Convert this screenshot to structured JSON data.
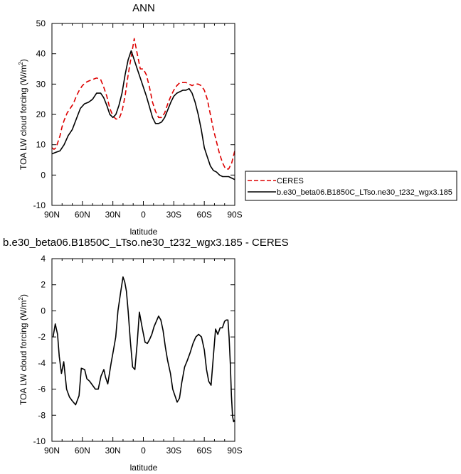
{
  "chart_data": [
    {
      "type": "line",
      "title": "ANN",
      "xlabel": "latitude",
      "ylabel": "TOA LW cloud forcing (W/m",
      "ylabel_sup": "2",
      "ylabel_close": ")",
      "xlim": [
        90,
        -90
      ],
      "ylim": [
        -10,
        50
      ],
      "xticks": [
        90,
        60,
        30,
        0,
        -30,
        -60,
        -90
      ],
      "xtick_labels": [
        "90N",
        "60N",
        "30N",
        "0",
        "30S",
        "60S",
        "90S"
      ],
      "yticks": [
        -10,
        0,
        10,
        20,
        30,
        40,
        50
      ],
      "ytick_labels": [
        "-10",
        "0",
        "10",
        "20",
        "30",
        "40",
        "50"
      ],
      "legend": [
        "CERES",
        "b.e30_beta06.B1850C_LTso.ne30_t232_wgx3.185"
      ],
      "legend_placement": "right-middle",
      "grid": false,
      "series": [
        {
          "name": "CERES",
          "color": "#dd0000",
          "style": "dashed",
          "x": [
            90,
            88,
            86,
            84,
            82,
            80,
            78,
            75,
            72,
            69,
            66,
            63,
            60,
            57,
            54,
            50,
            46,
            42,
            39,
            36,
            33,
            30,
            27,
            24,
            21,
            18,
            15,
            12,
            9,
            6,
            3,
            0,
            -3,
            -6,
            -9,
            -12,
            -15,
            -18,
            -21,
            -24,
            -27,
            -30,
            -33,
            -36,
            -39,
            -42,
            -45,
            -48,
            -51,
            -54,
            -57,
            -60,
            -63,
            -66,
            -69,
            -72,
            -75,
            -78,
            -81,
            -84,
            -87,
            -90
          ],
          "y": [
            9,
            8.5,
            9,
            11,
            13,
            16,
            18,
            20.5,
            22,
            23.5,
            26,
            28,
            29.5,
            30.5,
            31,
            31.5,
            32,
            31.5,
            29,
            26,
            22,
            19.5,
            18.5,
            18.5,
            21,
            26,
            33,
            39,
            45,
            40,
            35,
            35,
            33,
            29,
            24,
            21,
            19,
            19,
            20.5,
            23.5,
            26,
            28,
            29.5,
            30.5,
            30.5,
            30.5,
            30,
            29.5,
            30,
            30,
            29.5,
            28,
            25,
            20,
            15,
            11,
            7,
            4,
            2,
            2,
            4,
            8
          ]
        },
        {
          "name": "b.e30_beta06.B1850C_LTso.ne30_t232_wgx3.185",
          "color": "#000000",
          "style": "solid",
          "x": [
            90,
            86,
            82,
            78,
            74,
            70,
            66,
            62,
            58,
            54,
            50,
            46,
            42,
            39,
            36,
            33,
            30,
            27,
            24,
            21,
            18,
            15,
            12,
            9,
            6,
            3,
            0,
            -3,
            -6,
            -9,
            -12,
            -15,
            -18,
            -21,
            -24,
            -27,
            -30,
            -33,
            -36,
            -39,
            -42,
            -45,
            -48,
            -51,
            -54,
            -57,
            -60,
            -63,
            -66,
            -69,
            -72,
            -75,
            -78,
            -81,
            -84,
            -87,
            -90
          ],
          "y": [
            7,
            7.5,
            8,
            10,
            13,
            15,
            18.5,
            22,
            23.5,
            24,
            25,
            27,
            27,
            25.5,
            23,
            20,
            19,
            20,
            23,
            27,
            33,
            38,
            41,
            38,
            35,
            32,
            29,
            26,
            22.5,
            19,
            17,
            17,
            17.5,
            19,
            21.5,
            24,
            26,
            27,
            27.5,
            28,
            28,
            28.5,
            27,
            24,
            20,
            15,
            9,
            6,
            3,
            1.5,
            1,
            0,
            -0.5,
            -0.5,
            -0.5,
            -1,
            -1.5
          ]
        }
      ]
    },
    {
      "type": "line",
      "title": "b.e30_beta06.B1850C_LTso.ne30_t232_wgx3.185 - CERES",
      "xlabel": "latitude",
      "ylabel": "TOA LW cloud forcing (W/m",
      "ylabel_sup": "2",
      "ylabel_close": ")",
      "xlim": [
        90,
        -90
      ],
      "ylim": [
        -10,
        4
      ],
      "xticks": [
        90,
        60,
        30,
        0,
        -30,
        -60,
        -90
      ],
      "xtick_labels": [
        "90N",
        "60N",
        "30N",
        "0",
        "30S",
        "60S",
        "90S"
      ],
      "yticks": [
        -10,
        -8,
        -6,
        -4,
        -2,
        0,
        2,
        4
      ],
      "ytick_labels": [
        "-10",
        "-8",
        "-6",
        "-4",
        "-2",
        "0",
        "2",
        "4"
      ],
      "grid": false,
      "series": [
        {
          "color": "#000000",
          "style": "solid",
          "x": [
            88.9,
            86.7,
            84.5,
            82.8,
            80.6,
            78.4,
            75.6,
            72.8,
            70.0,
            66.7,
            63.3,
            61.1,
            57.8,
            55.6,
            52.8,
            50.0,
            47.2,
            44.4,
            41.7,
            38.9,
            37.2,
            35.0,
            31.7,
            29.4,
            27.2,
            25.0,
            22.2,
            20.0,
            18.3,
            16.7,
            15.0,
            12.8,
            10.6,
            8.3,
            6.1,
            3.9,
            1.1,
            -1.7,
            -3.9,
            -6.1,
            -8.3,
            -10.6,
            -12.8,
            -15.0,
            -17.2,
            -19.4,
            -21.7,
            -23.9,
            -26.7,
            -28.9,
            -31.1,
            -33.3,
            -35.6,
            -37.8,
            -40.6,
            -43.3,
            -46.1,
            -48.9,
            -51.7,
            -54.4,
            -57.2,
            -60.0,
            -62.2,
            -64.4,
            -66.7,
            -68.9,
            -71.1,
            -73.3,
            -75.6,
            -77.8,
            -80.0,
            -81.7,
            -83.3,
            -84.4,
            -85.6,
            -86.7,
            -87.8,
            -88.9,
            -89.6,
            -90.0
          ],
          "y": [
            -2,
            -1,
            -1.8,
            -3.5,
            -4.8,
            -3.9,
            -6,
            -6.6,
            -6.9,
            -7.2,
            -6.5,
            -4.4,
            -4.5,
            -5.2,
            -5.4,
            -5.7,
            -6,
            -6,
            -5,
            -4.5,
            -5.1,
            -5.6,
            -4,
            -3,
            -2,
            0,
            1.5,
            2.6,
            2.2,
            1.5,
            0,
            -2.3,
            -4.3,
            -4.5,
            -2.5,
            -0.1,
            -1.3,
            -2.4,
            -2.5,
            -2.2,
            -1.8,
            -1.2,
            -0.8,
            -0.4,
            -0.7,
            -1.5,
            -2.8,
            -3.8,
            -4.8,
            -6,
            -6.5,
            -7,
            -6.7,
            -5.5,
            -4.3,
            -3.8,
            -3.2,
            -2.5,
            -2,
            -1.8,
            -2,
            -3,
            -4.5,
            -5.4,
            -5.7,
            -3.5,
            -1.4,
            -1.8,
            -1.3,
            -1.3,
            -0.8,
            -0.7,
            -0.7,
            -2,
            -4,
            -6.5,
            -8.1,
            -8.5,
            -8.4,
            -8.5
          ]
        }
      ]
    }
  ]
}
